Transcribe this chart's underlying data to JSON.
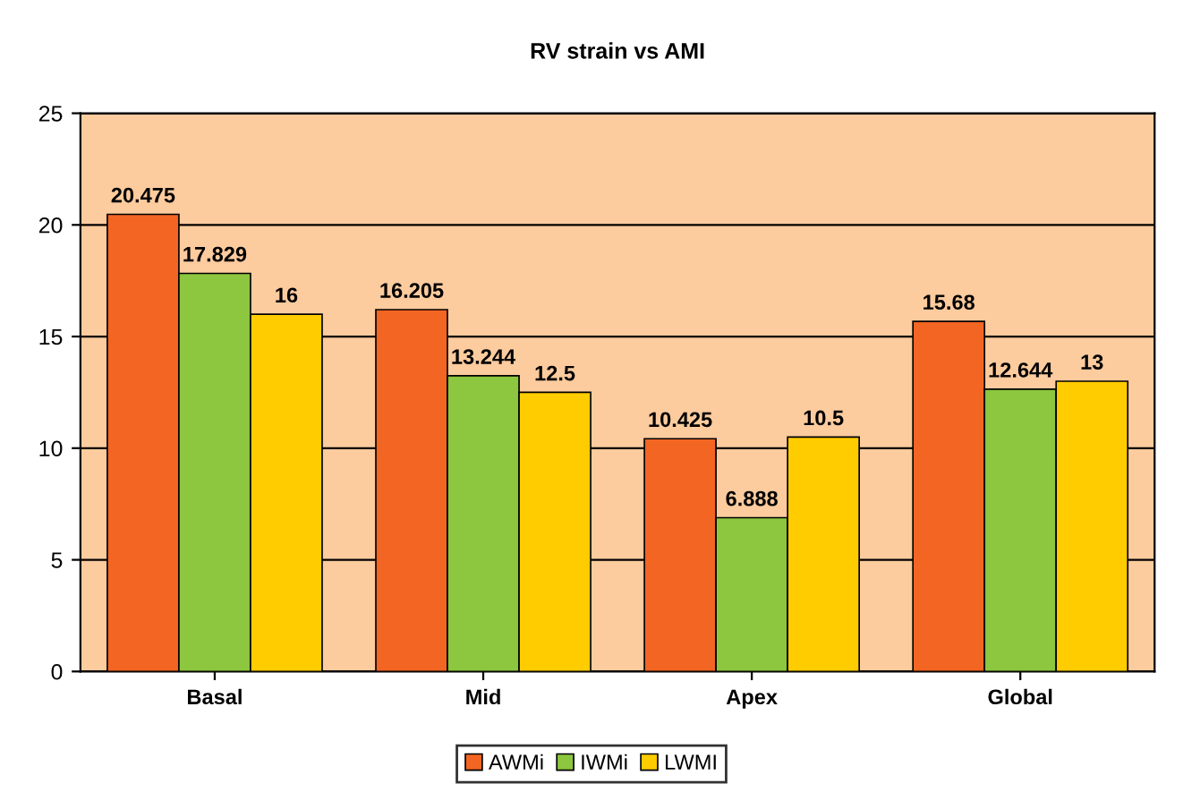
{
  "chart_data": {
    "type": "bar",
    "title": "RV strain vs AMI",
    "categories": [
      "Basal",
      "Mid",
      "Apex",
      "Global"
    ],
    "series": [
      {
        "name": "AWMi",
        "color": "#f26522",
        "values": [
          20.475,
          16.205,
          10.425,
          15.68
        ]
      },
      {
        "name": "IWMi",
        "color": "#8dc63f",
        "values": [
          17.829,
          13.244,
          6.888,
          12.644
        ]
      },
      {
        "name": "LWMI",
        "color": "#ffcc00",
        "values": [
          16,
          12.5,
          10.5,
          13
        ]
      }
    ],
    "ylim": [
      0,
      25
    ],
    "yticks": [
      0,
      5,
      10,
      15,
      20,
      25
    ],
    "grid": "y",
    "legend": "bottom",
    "data_labels": true
  }
}
